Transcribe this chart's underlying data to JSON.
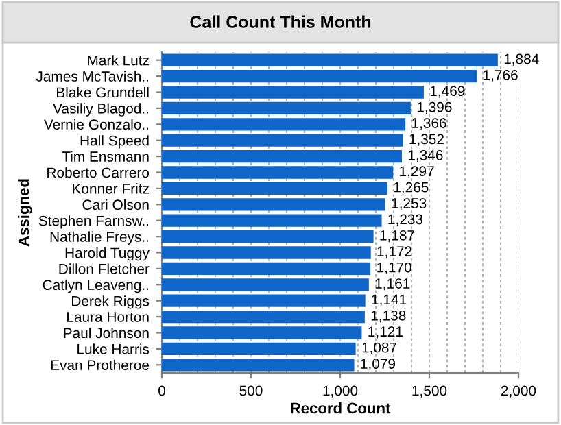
{
  "chart_data": {
    "type": "bar",
    "orientation": "horizontal",
    "title": "Call Count This Month",
    "xlabel": "Record Count",
    "ylabel": "Assigned",
    "categories": [
      "Mark Lutz",
      "James McTavish..",
      "Blake Grundell",
      "Vasiliy Blagod..",
      "Vernie Gonzalo..",
      "Hall Speed",
      "Tim Ensmann",
      "Roberto Carrero",
      "Konner Fritz",
      "Cari Olson",
      "Stephen Farnsw..",
      "Nathalie Freys..",
      "Harold Tuggy",
      "Dillon Fletcher",
      "Catlyn Leaveng..",
      "Derek Riggs",
      "Laura Horton",
      "Paul Johnson",
      "Luke Harris",
      "Evan Protheroe"
    ],
    "values": [
      1884,
      1766,
      1469,
      1396,
      1366,
      1352,
      1346,
      1297,
      1265,
      1253,
      1233,
      1187,
      1172,
      1170,
      1161,
      1141,
      1138,
      1121,
      1087,
      1079
    ],
    "value_labels": [
      "1,884",
      "1,766",
      "1,469",
      "1,396",
      "1,366",
      "1,352",
      "1,346",
      "1,297",
      "1,265",
      "1,253",
      "1,233",
      "1,187",
      "1,172",
      "1,170",
      "1,161",
      "1,141",
      "1,138",
      "1,121",
      "1,087",
      "1,079"
    ],
    "color": "#0f66c8",
    "xlim": [
      0,
      2000
    ],
    "xticks": [
      {
        "value": 0,
        "label": "0"
      },
      {
        "value": 100,
        "label": null
      },
      {
        "value": 200,
        "label": null
      },
      {
        "value": 300,
        "label": null
      },
      {
        "value": 400,
        "label": null
      },
      {
        "value": 500,
        "label": "500"
      },
      {
        "value": 600,
        "label": null
      },
      {
        "value": 700,
        "label": null
      },
      {
        "value": 800,
        "label": null
      },
      {
        "value": 900,
        "label": null
      },
      {
        "value": 1000,
        "label": "1,000"
      },
      {
        "value": 1100,
        "label": null
      },
      {
        "value": 1200,
        "label": null
      },
      {
        "value": 1300,
        "label": null
      },
      {
        "value": 1400,
        "label": null
      },
      {
        "value": 1500,
        "label": "1,500"
      },
      {
        "value": 1600,
        "label": null
      },
      {
        "value": 1700,
        "label": null
      },
      {
        "value": 1800,
        "label": null
      },
      {
        "value": 1900,
        "label": null
      },
      {
        "value": 2000,
        "label": "2,000"
      }
    ],
    "grid": "x",
    "legend": false
  }
}
